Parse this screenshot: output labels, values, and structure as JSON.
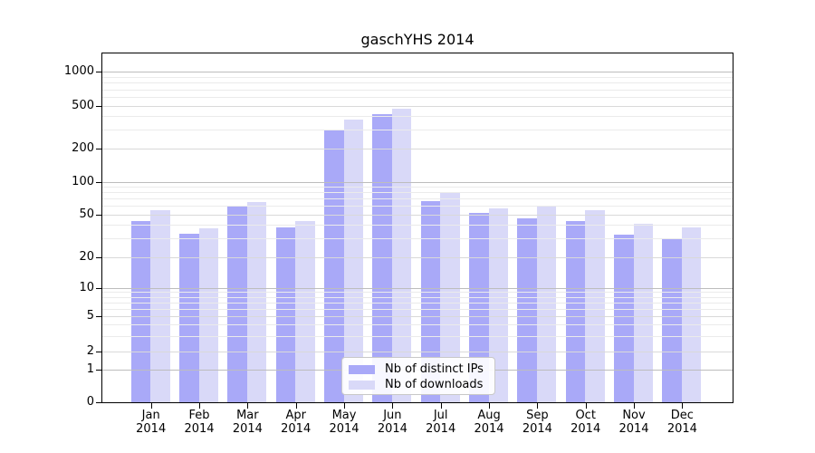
{
  "title": "gaschYHS 2014",
  "colors": {
    "series_distinct_ips": "#a9a9f8",
    "series_downloads": "#d9d9f8",
    "grid_major": "#bdbdbd",
    "grid_mid": "#d9d9d9",
    "grid_minor": "#ebebeb",
    "axis": "#000000",
    "legend_border": "#c8c8c8"
  },
  "legend": {
    "items": [
      {
        "label": "Nb of distinct IPs",
        "color": "#a9a9f8"
      },
      {
        "label": "Nb of downloads",
        "color": "#d9d9f8"
      }
    ]
  },
  "y_axis": {
    "tick_labels": [
      "1000",
      "500",
      "200",
      "100",
      "50",
      "20",
      "10",
      "5",
      "2",
      "1",
      "0"
    ],
    "tick_values": [
      1000,
      500,
      200,
      100,
      50,
      20,
      10,
      5,
      2,
      1,
      0
    ]
  },
  "x_axis": {
    "months": [
      "Jan",
      "Feb",
      "Mar",
      "Apr",
      "May",
      "Jun",
      "Jul",
      "Aug",
      "Sep",
      "Oct",
      "Nov",
      "Dec"
    ],
    "year": "2014"
  },
  "chart_data": {
    "type": "bar",
    "title": "gaschYHS 2014",
    "categories": [
      "Jan 2014",
      "Feb 2014",
      "Mar 2014",
      "Apr 2014",
      "May 2014",
      "Jun 2014",
      "Jul 2014",
      "Aug 2014",
      "Sep 2014",
      "Oct 2014",
      "Nov 2014",
      "Dec 2014"
    ],
    "series": [
      {
        "name": "Nb of distinct IPs",
        "values": [
          43,
          33,
          60,
          38,
          300,
          420,
          66,
          52,
          46,
          43,
          32,
          30
        ]
      },
      {
        "name": "Nb of downloads",
        "values": [
          55,
          37,
          65,
          43,
          370,
          470,
          80,
          57,
          60,
          55,
          41,
          38
        ]
      }
    ],
    "yscale": "symlog",
    "ylim": [
      0,
      1500
    ],
    "yticks": [
      0,
      1,
      2,
      5,
      10,
      20,
      50,
      100,
      200,
      500,
      1000
    ],
    "grid": true,
    "grid_values": {
      "major": [
        1,
        10,
        100,
        1000
      ],
      "mid": [
        2,
        5,
        20,
        50,
        200,
        500
      ],
      "minor": [
        3,
        4,
        6,
        7,
        8,
        9,
        30,
        40,
        60,
        70,
        80,
        90,
        300,
        400,
        600,
        700,
        800,
        900
      ]
    },
    "legend_position": "lower center"
  }
}
